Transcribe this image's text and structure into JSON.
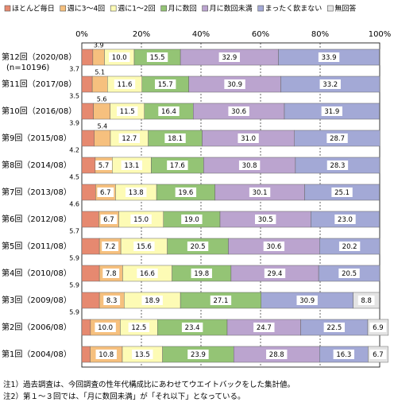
{
  "chart_data": {
    "type": "bar",
    "orientation": "horizontal",
    "stacked": true,
    "percent_stacked": true,
    "legend_position": "top",
    "legend": [
      "ほとんど毎日",
      "週に3～4回",
      "週に1～2回",
      "月に数回",
      "月に数回未満",
      "まったく飲まない",
      "無回答"
    ],
    "colors": [
      "#e68970",
      "#f6c07e",
      "#fdfbb5",
      "#94c475",
      "#bba4cf",
      "#a3a9d6",
      "#e3e3e3"
    ],
    "x_ticks": [
      "0%",
      "20%",
      "40%",
      "60%",
      "80%",
      "100%"
    ],
    "xlim": [
      0,
      100
    ],
    "grid": true,
    "categories": [
      "第12回（2020/08）",
      "第11回（2017/08）",
      "第10回（2016/08）",
      "第9回（2015/08）",
      "第8回（2014/08）",
      "第7回（2013/08）",
      "第6回（2012/08）",
      "第5回（2011/08）",
      "第4回（2010/08）",
      "第3回（2009/08）",
      "第2回（2006/08）",
      "第1回（2004/08）"
    ],
    "sample_note": "(n=10196)",
    "series": [
      {
        "name": "ほとんど毎日",
        "values": [
          3.7,
          3.5,
          3.9,
          4.2,
          4.5,
          4.6,
          5.7,
          5.9,
          5.9,
          5.9,
          2.9,
          2.8
        ]
      },
      {
        "name": "週に3～4回",
        "values": [
          3.9,
          5.1,
          5.6,
          5.4,
          5.7,
          6.7,
          6.7,
          7.2,
          7.8,
          8.3,
          10.0,
          10.8
        ]
      },
      {
        "name": "週に1～2回",
        "values": [
          10.0,
          11.6,
          11.5,
          12.7,
          13.1,
          13.8,
          15.0,
          15.6,
          16.6,
          18.9,
          12.5,
          13.5
        ]
      },
      {
        "name": "月に数回",
        "values": [
          15.5,
          15.7,
          16.4,
          18.1,
          17.6,
          19.6,
          19.0,
          20.5,
          19.8,
          27.1,
          23.4,
          23.9
        ]
      },
      {
        "name": "月に数回未満",
        "values": [
          32.9,
          30.9,
          30.6,
          31.0,
          30.8,
          30.1,
          30.5,
          30.6,
          29.4,
          0,
          24.7,
          28.8
        ]
      },
      {
        "name": "まったく飲まない",
        "values": [
          33.9,
          33.2,
          31.9,
          28.7,
          28.3,
          25.1,
          23.0,
          20.2,
          20.5,
          30.9,
          22.5,
          16.3
        ]
      },
      {
        "name": "無回答",
        "values": [
          0.1,
          0,
          0,
          0,
          0,
          0,
          0,
          0,
          0,
          8.8,
          6.9,
          6.7
        ]
      }
    ],
    "data_labels": [
      [
        "3.7",
        "3.9",
        "10.0",
        "15.5",
        "32.9",
        "33.9",
        ""
      ],
      [
        "3.5",
        "5.1",
        "11.6",
        "15.7",
        "30.9",
        "33.2",
        ""
      ],
      [
        "3.9",
        "5.6",
        "11.5",
        "16.4",
        "30.6",
        "31.9",
        ""
      ],
      [
        "4.2",
        "5.4",
        "12.7",
        "18.1",
        "31.0",
        "28.7",
        ""
      ],
      [
        "4.5",
        "5.7",
        "13.1",
        "17.6",
        "30.8",
        "28.3",
        ""
      ],
      [
        "4.6",
        "6.7",
        "13.8",
        "19.6",
        "30.1",
        "25.1",
        ""
      ],
      [
        "5.7",
        "6.7",
        "15.0",
        "19.0",
        "30.5",
        "23.0",
        ""
      ],
      [
        "5.9",
        "7.2",
        "15.6",
        "20.5",
        "30.6",
        "20.2",
        ""
      ],
      [
        "5.9",
        "7.8",
        "16.6",
        "19.8",
        "29.4",
        "20.5",
        ""
      ],
      [
        "5.9",
        "8.3",
        "18.9",
        "27.1",
        "",
        "30.9",
        "8.8"
      ],
      [
        "",
        "10.0",
        "12.5",
        "23.4",
        "24.7",
        "22.5",
        "6.9"
      ],
      [
        "",
        "10.8",
        "13.5",
        "23.9",
        "28.8",
        "16.3",
        "6.7"
      ]
    ]
  },
  "notes": [
    "注1）過去調査は、今回調査の性年代構成比にあわせてウエイトバックをした集計値。",
    "注2）第１～３回では、「月に数回未満」が「それ以下」となっている。"
  ]
}
